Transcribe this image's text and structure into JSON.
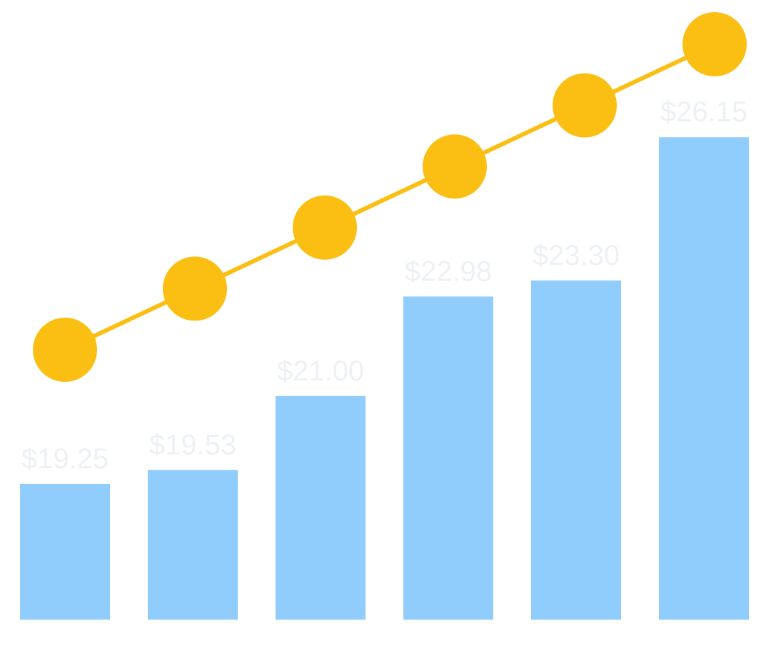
{
  "chart_data": {
    "type": "bar",
    "categories": [
      "",
      "",
      "",
      "",
      "",
      ""
    ],
    "values": [
      19.25,
      19.53,
      21.0,
      22.98,
      23.3,
      26.15
    ],
    "value_labels": [
      "$19.25",
      "$19.53",
      "$21.00",
      "$22.98",
      "$23.30",
      "$26.15"
    ],
    "line_series": {
      "values": [
        1,
        2,
        3,
        4,
        5,
        6
      ]
    },
    "title": "",
    "xlabel": "",
    "ylabel": "",
    "grid": false,
    "legend": "none",
    "colors": {
      "bar": "#90cdfc",
      "line": "#fbbf14",
      "label_text": "#eef1f4",
      "background": "#ffffff"
    }
  }
}
